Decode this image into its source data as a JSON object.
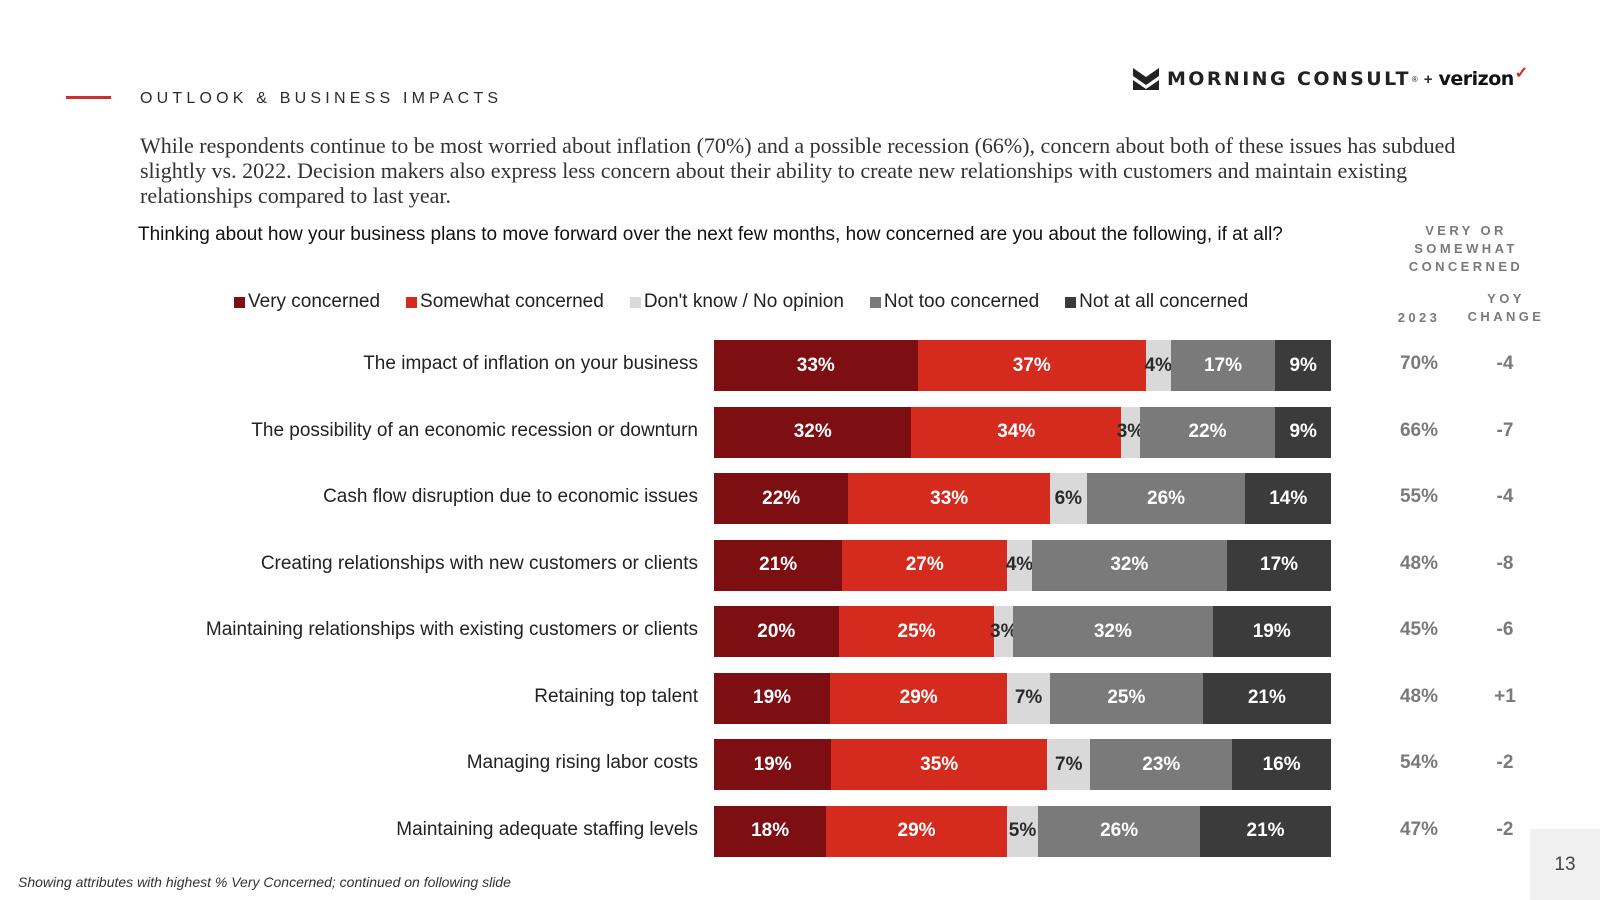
{
  "header": {
    "section_title": "OUTLOOK & BUSINESS IMPACTS",
    "logo": {
      "brand1": "MORNING CONSULT",
      "tm": "®",
      "plus": "+",
      "brand2": "verizon",
      "check": "✓"
    }
  },
  "intro": "While respondents continue to be most worried about inflation (70%) and a possible recession (66%), concern about both of these issues has subdued slightly vs. 2022. Decision makers also express less concern about their ability to create new relationships with customers and maintain existing relationships compared to last year.",
  "question": "Thinking about how your business plans to move forward over the next few months, how concerned are you about the following, if at all?",
  "column_headers": {
    "very_or_somewhat": "VERY OR SOMEWHAT CONCERNED",
    "year": "2023",
    "yoy": "YOY CHANGE"
  },
  "colors": {
    "very": "#7d0e11",
    "somewhat": "#d52b1e",
    "dont_know": "#d9d9d9",
    "not_too": "#7a7a7a",
    "not_at_all": "#3b3b3b",
    "accent": "#c8322b"
  },
  "chart_data": {
    "type": "bar",
    "orientation": "horizontal",
    "stacked": true,
    "normalized": "percent",
    "title": "Thinking about how your business plans to move forward over the next few months, how concerned are you about the following, if at all?",
    "legend_position": "top",
    "categories": [
      "The impact of inflation on your business",
      "The possibility of an economic recession or downturn",
      "Cash flow disruption due to economic issues",
      "Creating relationships with new customers or clients",
      "Maintaining relationships with existing customers or clients",
      "Retaining top talent",
      "Managing rising labor costs",
      "Maintaining adequate staffing levels"
    ],
    "series": [
      {
        "name": "Very concerned",
        "values": [
          33,
          32,
          22,
          21,
          20,
          19,
          19,
          18
        ]
      },
      {
        "name": "Somewhat concerned",
        "values": [
          37,
          34,
          33,
          27,
          25,
          29,
          35,
          29
        ]
      },
      {
        "name": "Don't know / No opinion",
        "values": [
          4,
          3,
          6,
          4,
          3,
          7,
          7,
          5
        ]
      },
      {
        "name": "Not too concerned",
        "values": [
          17,
          22,
          26,
          32,
          32,
          25,
          23,
          26
        ]
      },
      {
        "name": "Not at all concerned",
        "values": [
          9,
          9,
          14,
          17,
          19,
          21,
          16,
          21
        ]
      }
    ],
    "side_columns": {
      "very_or_somewhat_2023": [
        "70%",
        "66%",
        "55%",
        "48%",
        "45%",
        "48%",
        "54%",
        "47%"
      ],
      "yoy_change": [
        "-4",
        "-7",
        "-4",
        "-8",
        "-6",
        "+1",
        "-2",
        "-2"
      ]
    }
  },
  "footnote": "Showing attributes with highest % Very Concerned; continued on following slide",
  "page_number": "13"
}
